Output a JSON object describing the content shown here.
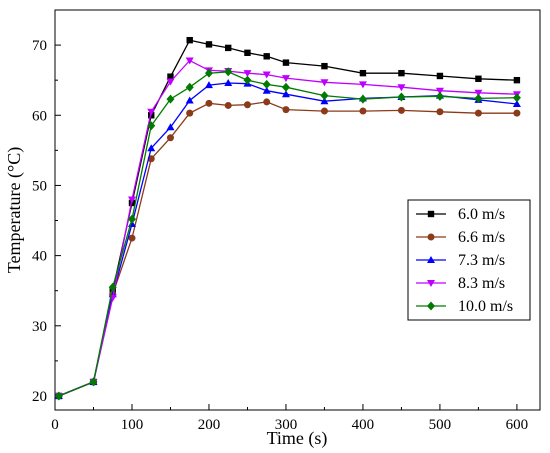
{
  "chart_data": {
    "type": "line",
    "xlabel": "Time (s)",
    "ylabel": "Temperature (°C)",
    "xlim": [
      0,
      630
    ],
    "ylim": [
      18,
      75
    ],
    "xticks": [
      0,
      100,
      200,
      300,
      400,
      500,
      600
    ],
    "yticks": [
      20,
      30,
      40,
      50,
      60,
      70
    ],
    "grid": false,
    "legend_position": "center-right",
    "x": [
      5,
      50,
      75,
      100,
      125,
      150,
      175,
      200,
      225,
      250,
      275,
      300,
      350,
      400,
      450,
      500,
      550,
      600
    ],
    "series": [
      {
        "name": "6.0 m/s",
        "marker": "square",
        "color": "#000000",
        "values": [
          20.0,
          22.0,
          35.0,
          47.5,
          60.0,
          65.5,
          70.7,
          70.1,
          69.6,
          68.9,
          68.4,
          67.5,
          67.0,
          66.0,
          66.0,
          65.6,
          65.2,
          65.0
        ]
      },
      {
        "name": "6.6 m/s",
        "marker": "circle",
        "color": "#8B3A1A",
        "values": [
          20.0,
          22.0,
          34.5,
          42.5,
          53.8,
          56.8,
          60.3,
          61.7,
          61.4,
          61.5,
          61.9,
          60.8,
          60.6,
          60.6,
          60.7,
          60.5,
          60.3,
          60.3
        ]
      },
      {
        "name": "7.3 m/s",
        "marker": "triangle-up",
        "color": "#0000FF",
        "values": [
          20.0,
          22.0,
          34.5,
          44.5,
          55.3,
          58.3,
          62.1,
          64.3,
          64.6,
          64.5,
          63.5,
          63.0,
          62.0,
          62.4,
          62.6,
          62.8,
          62.2,
          61.6
        ]
      },
      {
        "name": "8.3 m/s",
        "marker": "triangle-down",
        "color": "#C000FF",
        "values": [
          20.0,
          22.0,
          34.0,
          48.0,
          60.5,
          64.8,
          67.8,
          66.4,
          66.3,
          66.0,
          65.8,
          65.3,
          64.7,
          64.4,
          64.0,
          63.5,
          63.2,
          63.0
        ]
      },
      {
        "name": "10.0 m/s",
        "marker": "diamond",
        "color": "#007A00",
        "values": [
          20.0,
          22.0,
          35.5,
          45.2,
          58.5,
          62.3,
          64.0,
          66.0,
          66.2,
          65.0,
          64.4,
          64.0,
          62.8,
          62.3,
          62.6,
          62.7,
          62.4,
          62.5
        ]
      }
    ]
  }
}
